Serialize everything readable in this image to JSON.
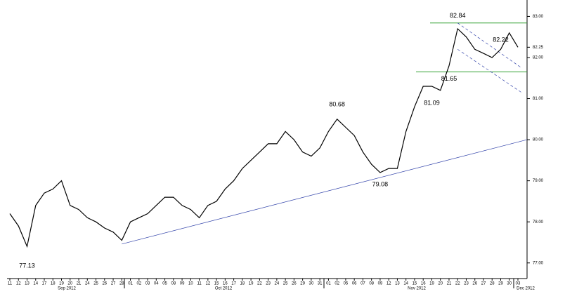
{
  "chart_data": {
    "type": "line",
    "categories": [
      "11",
      "12",
      "13",
      "14",
      "17",
      "18",
      "19",
      "20",
      "21",
      "24",
      "25",
      "26",
      "27",
      "28",
      "01",
      "02",
      "03",
      "04",
      "05",
      "08",
      "09",
      "10",
      "11",
      "12",
      "15",
      "16",
      "17",
      "18",
      "19",
      "22",
      "23",
      "24",
      "25",
      "26",
      "29",
      "30",
      "31",
      "01",
      "02",
      "05",
      "06",
      "07",
      "08",
      "09",
      "12",
      "13",
      "14",
      "15",
      "16",
      "19",
      "20",
      "21",
      "22",
      "23",
      "26",
      "27",
      "28",
      "29",
      "30",
      "03"
    ],
    "series": [
      {
        "color": "#000000",
        "values": [
          78.2,
          77.9,
          77.4,
          78.4,
          78.7,
          78.8,
          79.0,
          78.4,
          78.3,
          78.1,
          78.0,
          77.85,
          77.75,
          77.55,
          78.0,
          78.1,
          78.2,
          78.4,
          78.6,
          78.6,
          78.4,
          78.3,
          78.1,
          78.4,
          78.5,
          78.8,
          79.0,
          79.3,
          79.5,
          79.7,
          79.9,
          79.9,
          80.2,
          80.0,
          79.7,
          79.6,
          79.8,
          80.2,
          80.5,
          80.3,
          80.1,
          79.7,
          79.4,
          79.2,
          79.3,
          79.3,
          80.2,
          80.8,
          81.3,
          81.3,
          81.2,
          81.8,
          82.7,
          82.5,
          82.2,
          82.1,
          82.0,
          82.2,
          82.6,
          82.25
        ]
      }
    ],
    "months": [
      "Sep 2012",
      "Oct 2012",
      "Nov 2012",
      "Dec 2012"
    ],
    "ylim": [
      76.62,
      83.4
    ],
    "yticks": [
      {
        "value": 77,
        "label": "77.00"
      },
      {
        "value": 78,
        "label": "78.00"
      },
      {
        "value": 79,
        "label": "79.00"
      },
      {
        "value": 80,
        "label": "80.00"
      },
      {
        "value": 81,
        "label": "81.00"
      },
      {
        "value": 82,
        "label": "82.00"
      },
      {
        "value": 83,
        "label": "83.00"
      }
    ],
    "current_price": 82.25,
    "annotations": [
      77.13,
      80.68,
      79.08,
      81.09,
      81.65,
      82.84,
      82.22
    ],
    "support_line": [
      77.46,
      80.0
    ],
    "resistance_lines": {
      "color": "#2e9e2e",
      "values": [
        82.84,
        81.65
      ]
    },
    "channel_lines": {
      "color": "#3344aa",
      "upper": [
        82.84,
        81.75
      ],
      "lower": [
        82.2,
        81.15
      ]
    }
  }
}
